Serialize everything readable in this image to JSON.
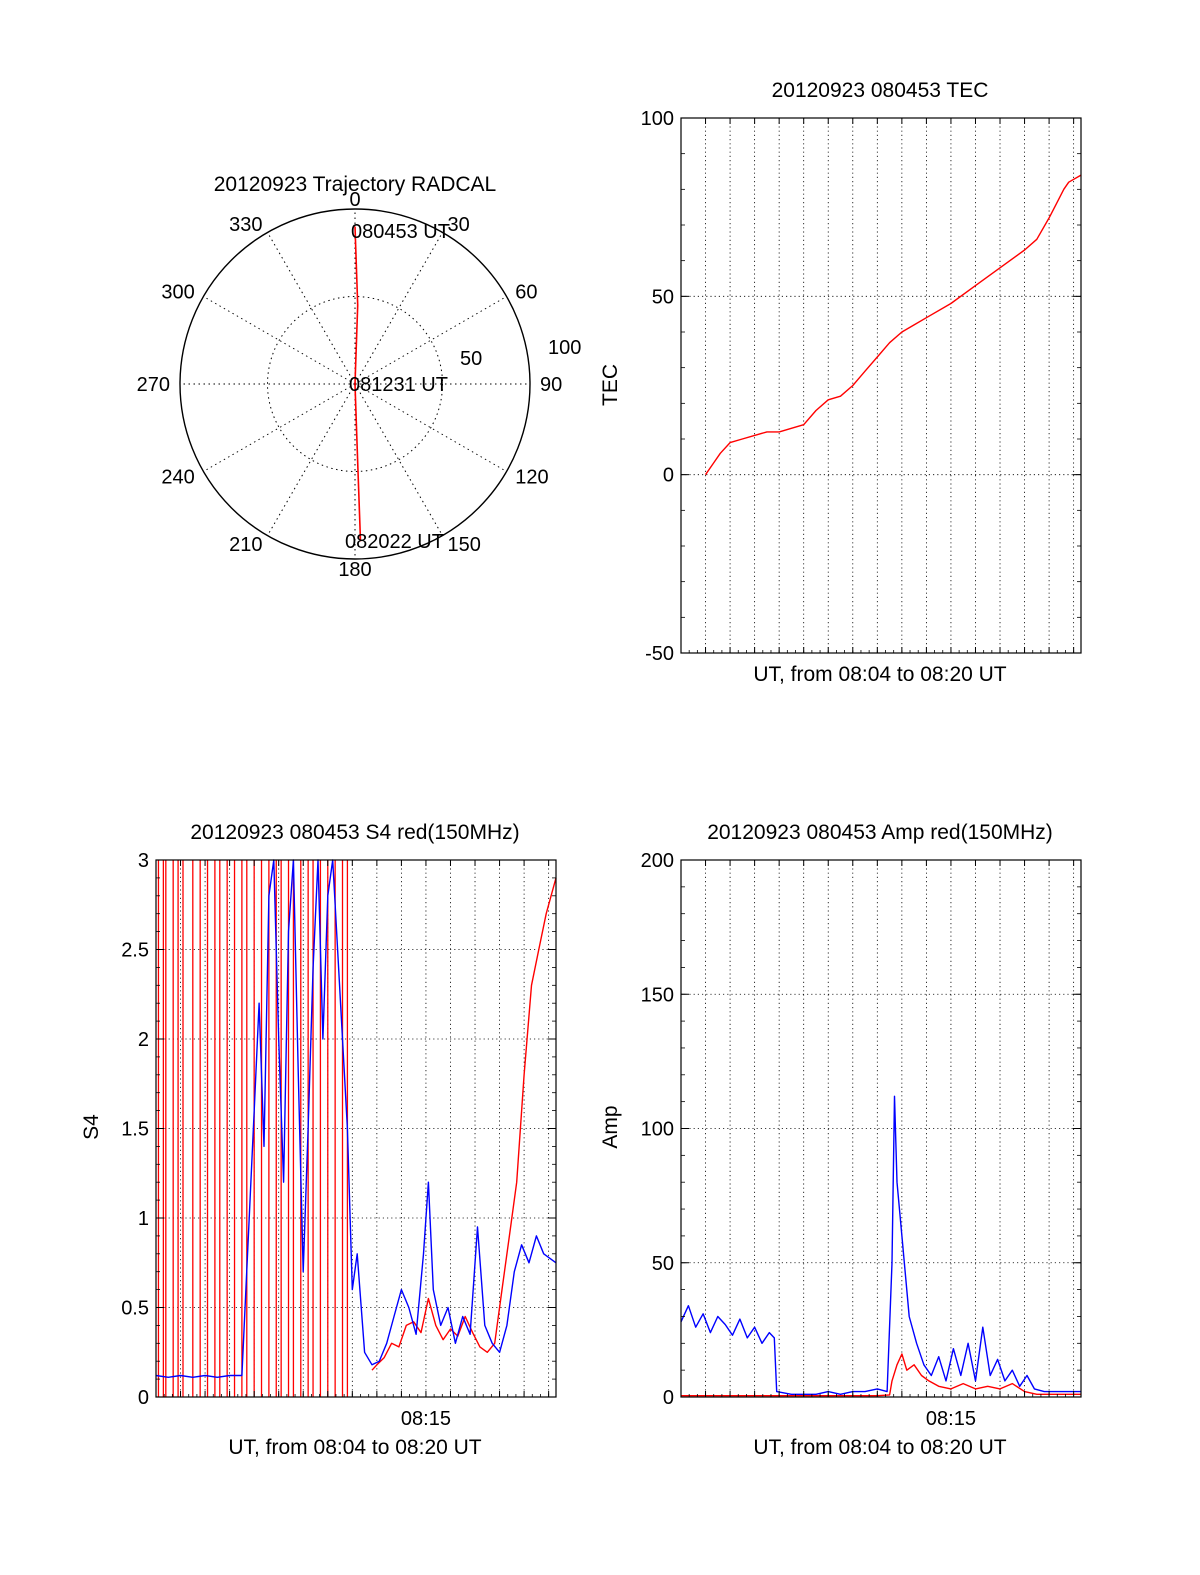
{
  "colors": {
    "red_channel": "#ff0000",
    "blue_channel": "#0000ff",
    "grid": "#000000",
    "axis": "#000000"
  },
  "chart_data": [
    {
      "id": "trajectory",
      "type": "polar",
      "title": "20120923 Trajectory RADCAL",
      "azimuth_labels": [
        "0",
        "30",
        "60",
        "90",
        "120",
        "150",
        "180",
        "210",
        "240",
        "270",
        "300",
        "330"
      ],
      "radial_rings": [
        50,
        100
      ],
      "radial_labels": [
        "50",
        "100"
      ],
      "radial_max": 100,
      "trajectory": [
        {
          "az": 0,
          "r": 90
        },
        {
          "az": 2,
          "r": 45
        },
        {
          "az": 0,
          "r": 0
        },
        {
          "az": 178,
          "r": 45
        },
        {
          "az": 178,
          "r": 90
        }
      ],
      "annotations": [
        "080453 UT",
        "081231 UT",
        "082022 UT"
      ]
    },
    {
      "id": "tec",
      "type": "line",
      "title": "20120923 080453 TEC",
      "xlabel": "UT, from 08:04 to 08:20 UT",
      "ylabel": "TEC",
      "xlim": [
        0,
        16.3
      ],
      "ylim": [
        -50,
        100
      ],
      "yticks": [
        "-50",
        "0",
        "50",
        "100"
      ],
      "x_grid_step_min": 1,
      "series": [
        {
          "color": "red",
          "points": [
            [
              1.0,
              0
            ],
            [
              1.3,
              3
            ],
            [
              1.6,
              6
            ],
            [
              2.0,
              9
            ],
            [
              2.5,
              10
            ],
            [
              3.0,
              11
            ],
            [
              3.5,
              12
            ],
            [
              4.0,
              12
            ],
            [
              4.5,
              13
            ],
            [
              5.0,
              14
            ],
            [
              5.5,
              18
            ],
            [
              6.0,
              21
            ],
            [
              6.5,
              22
            ],
            [
              7.0,
              25
            ],
            [
              7.5,
              29
            ],
            [
              8.0,
              33
            ],
            [
              8.5,
              37
            ],
            [
              9.0,
              40
            ],
            [
              9.5,
              42
            ],
            [
              10.0,
              44
            ],
            [
              11.0,
              48
            ],
            [
              12.0,
              53
            ],
            [
              13.0,
              58
            ],
            [
              14.0,
              63
            ],
            [
              14.5,
              66
            ],
            [
              15.0,
              72
            ],
            [
              15.3,
              76
            ],
            [
              15.6,
              80
            ],
            [
              15.8,
              82
            ],
            [
              16.3,
              84
            ]
          ]
        }
      ]
    },
    {
      "id": "s4",
      "type": "line",
      "title": "20120923 080453 S4 red(150MHz)",
      "xlabel": "UT, from 08:04 to 08:20 UT",
      "ylabel": "S4",
      "xlim": [
        0,
        16.3
      ],
      "ylim": [
        0,
        3
      ],
      "yticks": [
        "0",
        "0.5",
        "1",
        "1.5",
        "2",
        "2.5",
        "3"
      ],
      "xticks": [
        {
          "x": 11,
          "label": "08:15"
        }
      ],
      "x_grid_step_min": 1,
      "series": [
        {
          "color": "red",
          "spikes_x": [
            0.1,
            0.3,
            0.4,
            0.7,
            0.9,
            1.1,
            1.5,
            1.8,
            2.1,
            2.4,
            2.6,
            2.9,
            3.2,
            3.5,
            3.7,
            4.0,
            4.3,
            4.6,
            4.9,
            5.1,
            5.4,
            5.6,
            5.9,
            6.2,
            6.4,
            6.7,
            7.0,
            7.3,
            7.6,
            7.8
          ],
          "points": [
            [
              8.8,
              0.15
            ],
            [
              9.0,
              0.18
            ],
            [
              9.3,
              0.22
            ],
            [
              9.6,
              0.3
            ],
            [
              9.9,
              0.28
            ],
            [
              10.2,
              0.4
            ],
            [
              10.5,
              0.42
            ],
            [
              10.8,
              0.36
            ],
            [
              11.1,
              0.55
            ],
            [
              11.4,
              0.4
            ],
            [
              11.7,
              0.32
            ],
            [
              12.0,
              0.38
            ],
            [
              12.3,
              0.34
            ],
            [
              12.6,
              0.45
            ],
            [
              12.9,
              0.36
            ],
            [
              13.2,
              0.28
            ],
            [
              13.5,
              0.25
            ],
            [
              13.8,
              0.3
            ],
            [
              14.1,
              0.6
            ],
            [
              14.4,
              0.9
            ],
            [
              14.7,
              1.2
            ],
            [
              15.0,
              1.8
            ],
            [
              15.3,
              2.3
            ],
            [
              15.6,
              2.5
            ],
            [
              15.9,
              2.7
            ],
            [
              16.3,
              2.9
            ]
          ]
        },
        {
          "color": "blue",
          "points": [
            [
              0.0,
              0.12
            ],
            [
              0.5,
              0.11
            ],
            [
              1.0,
              0.12
            ],
            [
              1.5,
              0.11
            ],
            [
              2.0,
              0.12
            ],
            [
              2.5,
              0.11
            ],
            [
              3.0,
              0.12
            ],
            [
              3.5,
              0.12
            ],
            [
              4.0,
              1.6
            ],
            [
              4.2,
              2.2
            ],
            [
              4.4,
              1.4
            ],
            [
              4.6,
              2.8
            ],
            [
              4.8,
              3.0
            ],
            [
              5.0,
              2.0
            ],
            [
              5.2,
              1.2
            ],
            [
              5.4,
              2.6
            ],
            [
              5.6,
              3.0
            ],
            [
              5.8,
              1.8
            ],
            [
              6.0,
              0.7
            ],
            [
              6.2,
              1.5
            ],
            [
              6.4,
              2.4
            ],
            [
              6.6,
              3.0
            ],
            [
              6.8,
              2.0
            ],
            [
              7.0,
              2.8
            ],
            [
              7.2,
              3.0
            ],
            [
              7.4,
              2.5
            ],
            [
              7.6,
              2.0
            ],
            [
              7.8,
              1.5
            ],
            [
              8.0,
              0.6
            ],
            [
              8.2,
              0.8
            ],
            [
              8.5,
              0.25
            ],
            [
              8.8,
              0.18
            ],
            [
              9.1,
              0.2
            ],
            [
              9.4,
              0.3
            ],
            [
              9.7,
              0.45
            ],
            [
              10.0,
              0.6
            ],
            [
              10.3,
              0.5
            ],
            [
              10.6,
              0.35
            ],
            [
              10.9,
              0.8
            ],
            [
              11.1,
              1.2
            ],
            [
              11.3,
              0.6
            ],
            [
              11.6,
              0.4
            ],
            [
              11.9,
              0.5
            ],
            [
              12.2,
              0.3
            ],
            [
              12.5,
              0.45
            ],
            [
              12.8,
              0.35
            ],
            [
              13.1,
              0.95
            ],
            [
              13.4,
              0.4
            ],
            [
              13.7,
              0.3
            ],
            [
              14.0,
              0.25
            ],
            [
              14.3,
              0.4
            ],
            [
              14.6,
              0.7
            ],
            [
              14.9,
              0.85
            ],
            [
              15.2,
              0.75
            ],
            [
              15.5,
              0.9
            ],
            [
              15.8,
              0.8
            ],
            [
              16.3,
              0.75
            ]
          ]
        }
      ]
    },
    {
      "id": "amp",
      "type": "line",
      "title": "20120923 080453 Amp red(150MHz)",
      "xlabel": "UT, from 08:04 to 08:20 UT",
      "ylabel": "Amp",
      "xlim": [
        0,
        16.3
      ],
      "ylim": [
        0,
        200
      ],
      "yticks": [
        "0",
        "50",
        "100",
        "150",
        "200"
      ],
      "xticks": [
        {
          "x": 11,
          "label": "08:15"
        }
      ],
      "x_grid_step_min": 1,
      "series": [
        {
          "color": "red",
          "points": [
            [
              0.0,
              0.5
            ],
            [
              3.5,
              0.5
            ],
            [
              4.0,
              0.5
            ],
            [
              8.0,
              0.5
            ],
            [
              8.5,
              0.8
            ],
            [
              8.6,
              6
            ],
            [
              8.8,
              12
            ],
            [
              9.0,
              16
            ],
            [
              9.2,
              10
            ],
            [
              9.5,
              12
            ],
            [
              9.8,
              8
            ],
            [
              10.1,
              6
            ],
            [
              10.5,
              4
            ],
            [
              11.0,
              3
            ],
            [
              11.5,
              5
            ],
            [
              12.0,
              3
            ],
            [
              12.5,
              4
            ],
            [
              13.0,
              3
            ],
            [
              13.5,
              5
            ],
            [
              14.0,
              2
            ],
            [
              14.5,
              1
            ],
            [
              15.0,
              1
            ],
            [
              16.3,
              1
            ]
          ]
        },
        {
          "color": "blue",
          "points": [
            [
              0.0,
              28
            ],
            [
              0.3,
              34
            ],
            [
              0.6,
              26
            ],
            [
              0.9,
              31
            ],
            [
              1.2,
              24
            ],
            [
              1.5,
              30
            ],
            [
              1.8,
              27
            ],
            [
              2.1,
              23
            ],
            [
              2.4,
              29
            ],
            [
              2.7,
              22
            ],
            [
              3.0,
              26
            ],
            [
              3.3,
              20
            ],
            [
              3.6,
              24
            ],
            [
              3.8,
              22
            ],
            [
              3.9,
              2
            ],
            [
              4.5,
              1
            ],
            [
              5.5,
              1
            ],
            [
              6.0,
              2
            ],
            [
              6.5,
              1
            ],
            [
              7.0,
              2
            ],
            [
              7.5,
              2
            ],
            [
              8.0,
              3
            ],
            [
              8.4,
              2
            ],
            [
              8.6,
              50
            ],
            [
              8.7,
              112
            ],
            [
              8.8,
              80
            ],
            [
              9.0,
              60
            ],
            [
              9.3,
              30
            ],
            [
              9.6,
              20
            ],
            [
              9.9,
              12
            ],
            [
              10.2,
              8
            ],
            [
              10.5,
              15
            ],
            [
              10.8,
              6
            ],
            [
              11.1,
              18
            ],
            [
              11.4,
              8
            ],
            [
              11.7,
              20
            ],
            [
              12.0,
              6
            ],
            [
              12.3,
              26
            ],
            [
              12.6,
              8
            ],
            [
              12.9,
              14
            ],
            [
              13.2,
              6
            ],
            [
              13.5,
              10
            ],
            [
              13.8,
              4
            ],
            [
              14.1,
              8
            ],
            [
              14.4,
              3
            ],
            [
              14.8,
              2
            ],
            [
              15.2,
              2
            ],
            [
              15.6,
              2
            ],
            [
              16.3,
              2
            ]
          ]
        }
      ]
    }
  ]
}
